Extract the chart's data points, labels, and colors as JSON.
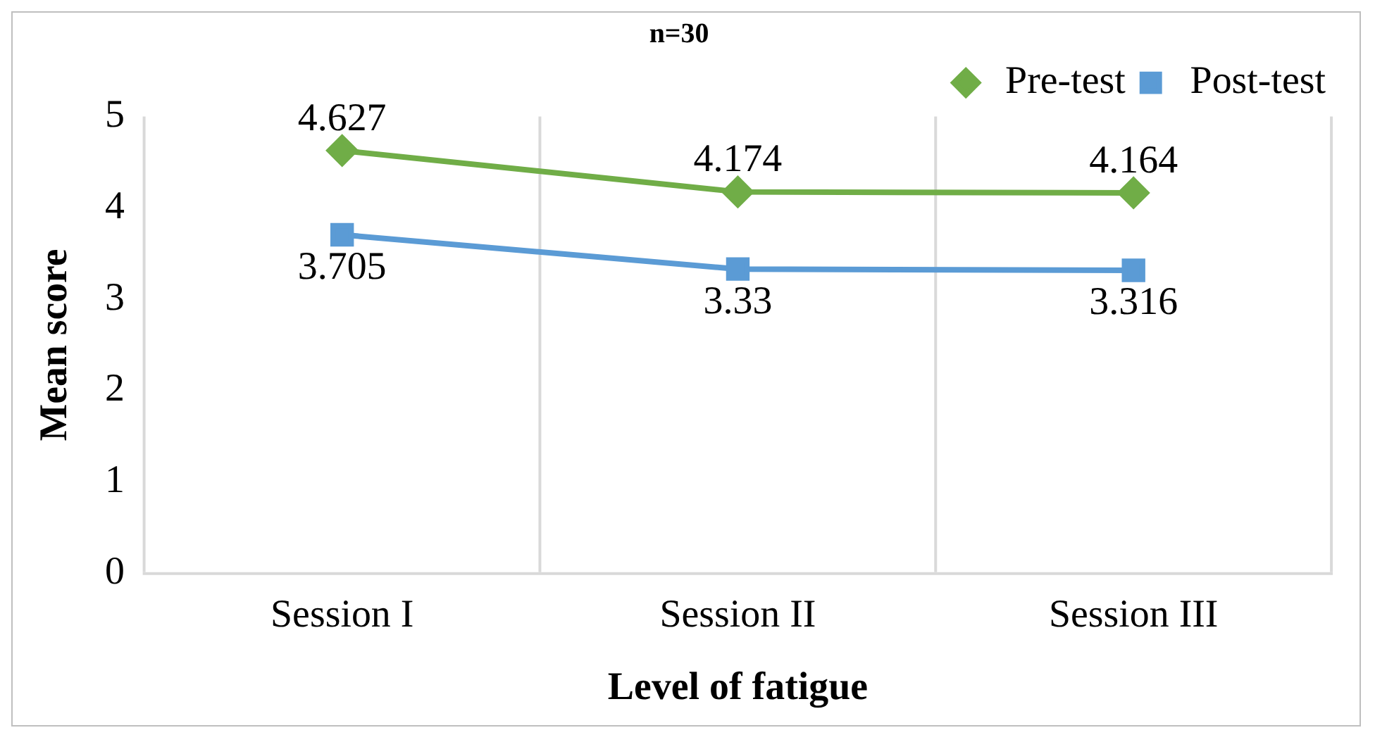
{
  "chart_data": {
    "type": "line",
    "title": "n=30",
    "xlabel": "Level of fatigue",
    "ylabel": "Mean score",
    "categories": [
      "Session I",
      "Session II",
      "Session III"
    ],
    "series": [
      {
        "name": "Pre-test",
        "color": "#70ad47",
        "marker": "diamond",
        "values": [
          4.627,
          4.174,
          4.164
        ]
      },
      {
        "name": "Post-test",
        "color": "#5b9bd5",
        "marker": "square",
        "values": [
          3.705,
          3.33,
          3.316
        ]
      }
    ],
    "ylim": [
      0,
      5
    ],
    "yticks": [
      0,
      1,
      2,
      3,
      4,
      5
    ],
    "grid": "x",
    "legend": "top right",
    "data_labels": true
  }
}
